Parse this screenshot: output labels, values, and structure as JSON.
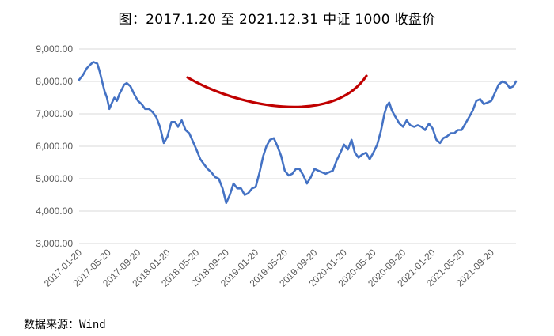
{
  "title": "图：2017.1.20 至 2021.12.31 中证 1000 收盘价",
  "source": "数据来源：Wind",
  "chart_data": {
    "type": "line",
    "title": "图：2017.1.20 至 2021.12.31 中证 1000 收盘价",
    "xlabel": "",
    "ylabel": "",
    "ylim": [
      3000,
      9000
    ],
    "y_ticks": [
      "3,000.00",
      "4,000.00",
      "5,000.00",
      "6,000.00",
      "7,000.00",
      "8,000.00",
      "9,000.00"
    ],
    "x_ticks": [
      "2017-01-20",
      "2017-05-20",
      "2017-09-20",
      "2018-01-20",
      "2018-05-20",
      "2018-09-20",
      "2019-01-20",
      "2019-05-20",
      "2019-09-20",
      "2020-01-20",
      "2020-05-20",
      "2020-09-20",
      "2021-01-20",
      "2021-05-20",
      "2021-09-20"
    ],
    "grid": true,
    "line_color": "#4472C4",
    "annotation_color": "#C00000",
    "series": [
      {
        "x": [
          "2017-01-20",
          "2017-02-05",
          "2017-02-20",
          "2017-03-05",
          "2017-03-20",
          "2017-04-05",
          "2017-04-15",
          "2017-04-25",
          "2017-05-05",
          "2017-05-15",
          "2017-05-25",
          "2017-06-05",
          "2017-06-15",
          "2017-06-25",
          "2017-07-05",
          "2017-07-15",
          "2017-07-25",
          "2017-08-05",
          "2017-08-20",
          "2017-09-05",
          "2017-09-20",
          "2017-10-05",
          "2017-10-20",
          "2017-11-05",
          "2017-11-20",
          "2017-12-05",
          "2017-12-20",
          "2018-01-05",
          "2018-01-20",
          "2018-02-05",
          "2018-02-20",
          "2018-03-05",
          "2018-03-20",
          "2018-04-05",
          "2018-04-20",
          "2018-05-05",
          "2018-05-20",
          "2018-06-05",
          "2018-06-20",
          "2018-07-05",
          "2018-07-20",
          "2018-08-05",
          "2018-08-20",
          "2018-09-05",
          "2018-09-20",
          "2018-10-05",
          "2018-10-20",
          "2018-11-05",
          "2018-11-20",
          "2018-12-05",
          "2018-12-20",
          "2019-01-05",
          "2019-01-20",
          "2019-02-05",
          "2019-02-20",
          "2019-03-05",
          "2019-03-20",
          "2019-04-05",
          "2019-04-20",
          "2019-05-05",
          "2019-05-20",
          "2019-06-05",
          "2019-06-20",
          "2019-07-05",
          "2019-07-20",
          "2019-08-05",
          "2019-08-20",
          "2019-09-05",
          "2019-09-20",
          "2019-10-05",
          "2019-10-20",
          "2019-11-05",
          "2019-11-20",
          "2019-12-05",
          "2019-12-20",
          "2020-01-05",
          "2020-01-20",
          "2020-02-05",
          "2020-02-20",
          "2020-03-05",
          "2020-03-20",
          "2020-04-05",
          "2020-04-20",
          "2020-05-05",
          "2020-05-20",
          "2020-06-05",
          "2020-06-20",
          "2020-07-05",
          "2020-07-15",
          "2020-07-25",
          "2020-08-05",
          "2020-08-20",
          "2020-09-05",
          "2020-09-20",
          "2020-10-05",
          "2020-10-20",
          "2020-11-05",
          "2020-11-20",
          "2020-12-05",
          "2020-12-20",
          "2021-01-05",
          "2021-01-20",
          "2021-02-05",
          "2021-02-20",
          "2021-03-05",
          "2021-03-20",
          "2021-04-05",
          "2021-04-20",
          "2021-05-05",
          "2021-05-20",
          "2021-06-05",
          "2021-06-20",
          "2021-07-05",
          "2021-07-20",
          "2021-08-05",
          "2021-08-20",
          "2021-09-05",
          "2021-09-20",
          "2021-10-05",
          "2021-10-20",
          "2021-11-05",
          "2021-11-20",
          "2021-12-05",
          "2021-12-20",
          "2021-12-31"
        ],
        "y": [
          8050,
          8200,
          8400,
          8500,
          8600,
          8550,
          8300,
          8000,
          7700,
          7500,
          7150,
          7350,
          7500,
          7400,
          7600,
          7750,
          7900,
          7950,
          7850,
          7600,
          7400,
          7300,
          7150,
          7150,
          7050,
          6900,
          6600,
          6100,
          6300,
          6750,
          6750,
          6600,
          6800,
          6500,
          6400,
          6150,
          5900,
          5600,
          5450,
          5300,
          5200,
          5050,
          5000,
          4700,
          4250,
          4500,
          4850,
          4700,
          4700,
          4500,
          4550,
          4700,
          4750,
          5200,
          5700,
          6000,
          6200,
          6250,
          6000,
          5700,
          5250,
          5100,
          5150,
          5300,
          5300,
          5100,
          4850,
          5050,
          5300,
          5250,
          5200,
          5150,
          5200,
          5250,
          5550,
          5800,
          6050,
          5900,
          6200,
          5800,
          5650,
          5750,
          5800,
          5600,
          5800,
          6050,
          6450,
          7000,
          7250,
          7350,
          7100,
          6900,
          6700,
          6600,
          6800,
          6650,
          6600,
          6650,
          6600,
          6500,
          6700,
          6550,
          6200,
          6100,
          6250,
          6300,
          6400,
          6400,
          6500,
          6500,
          6700,
          6900,
          7100,
          7400,
          7450,
          7300,
          7350,
          7400,
          7650,
          7900,
          8000,
          7950,
          7800,
          7850,
          8000
        ]
      }
    ]
  }
}
